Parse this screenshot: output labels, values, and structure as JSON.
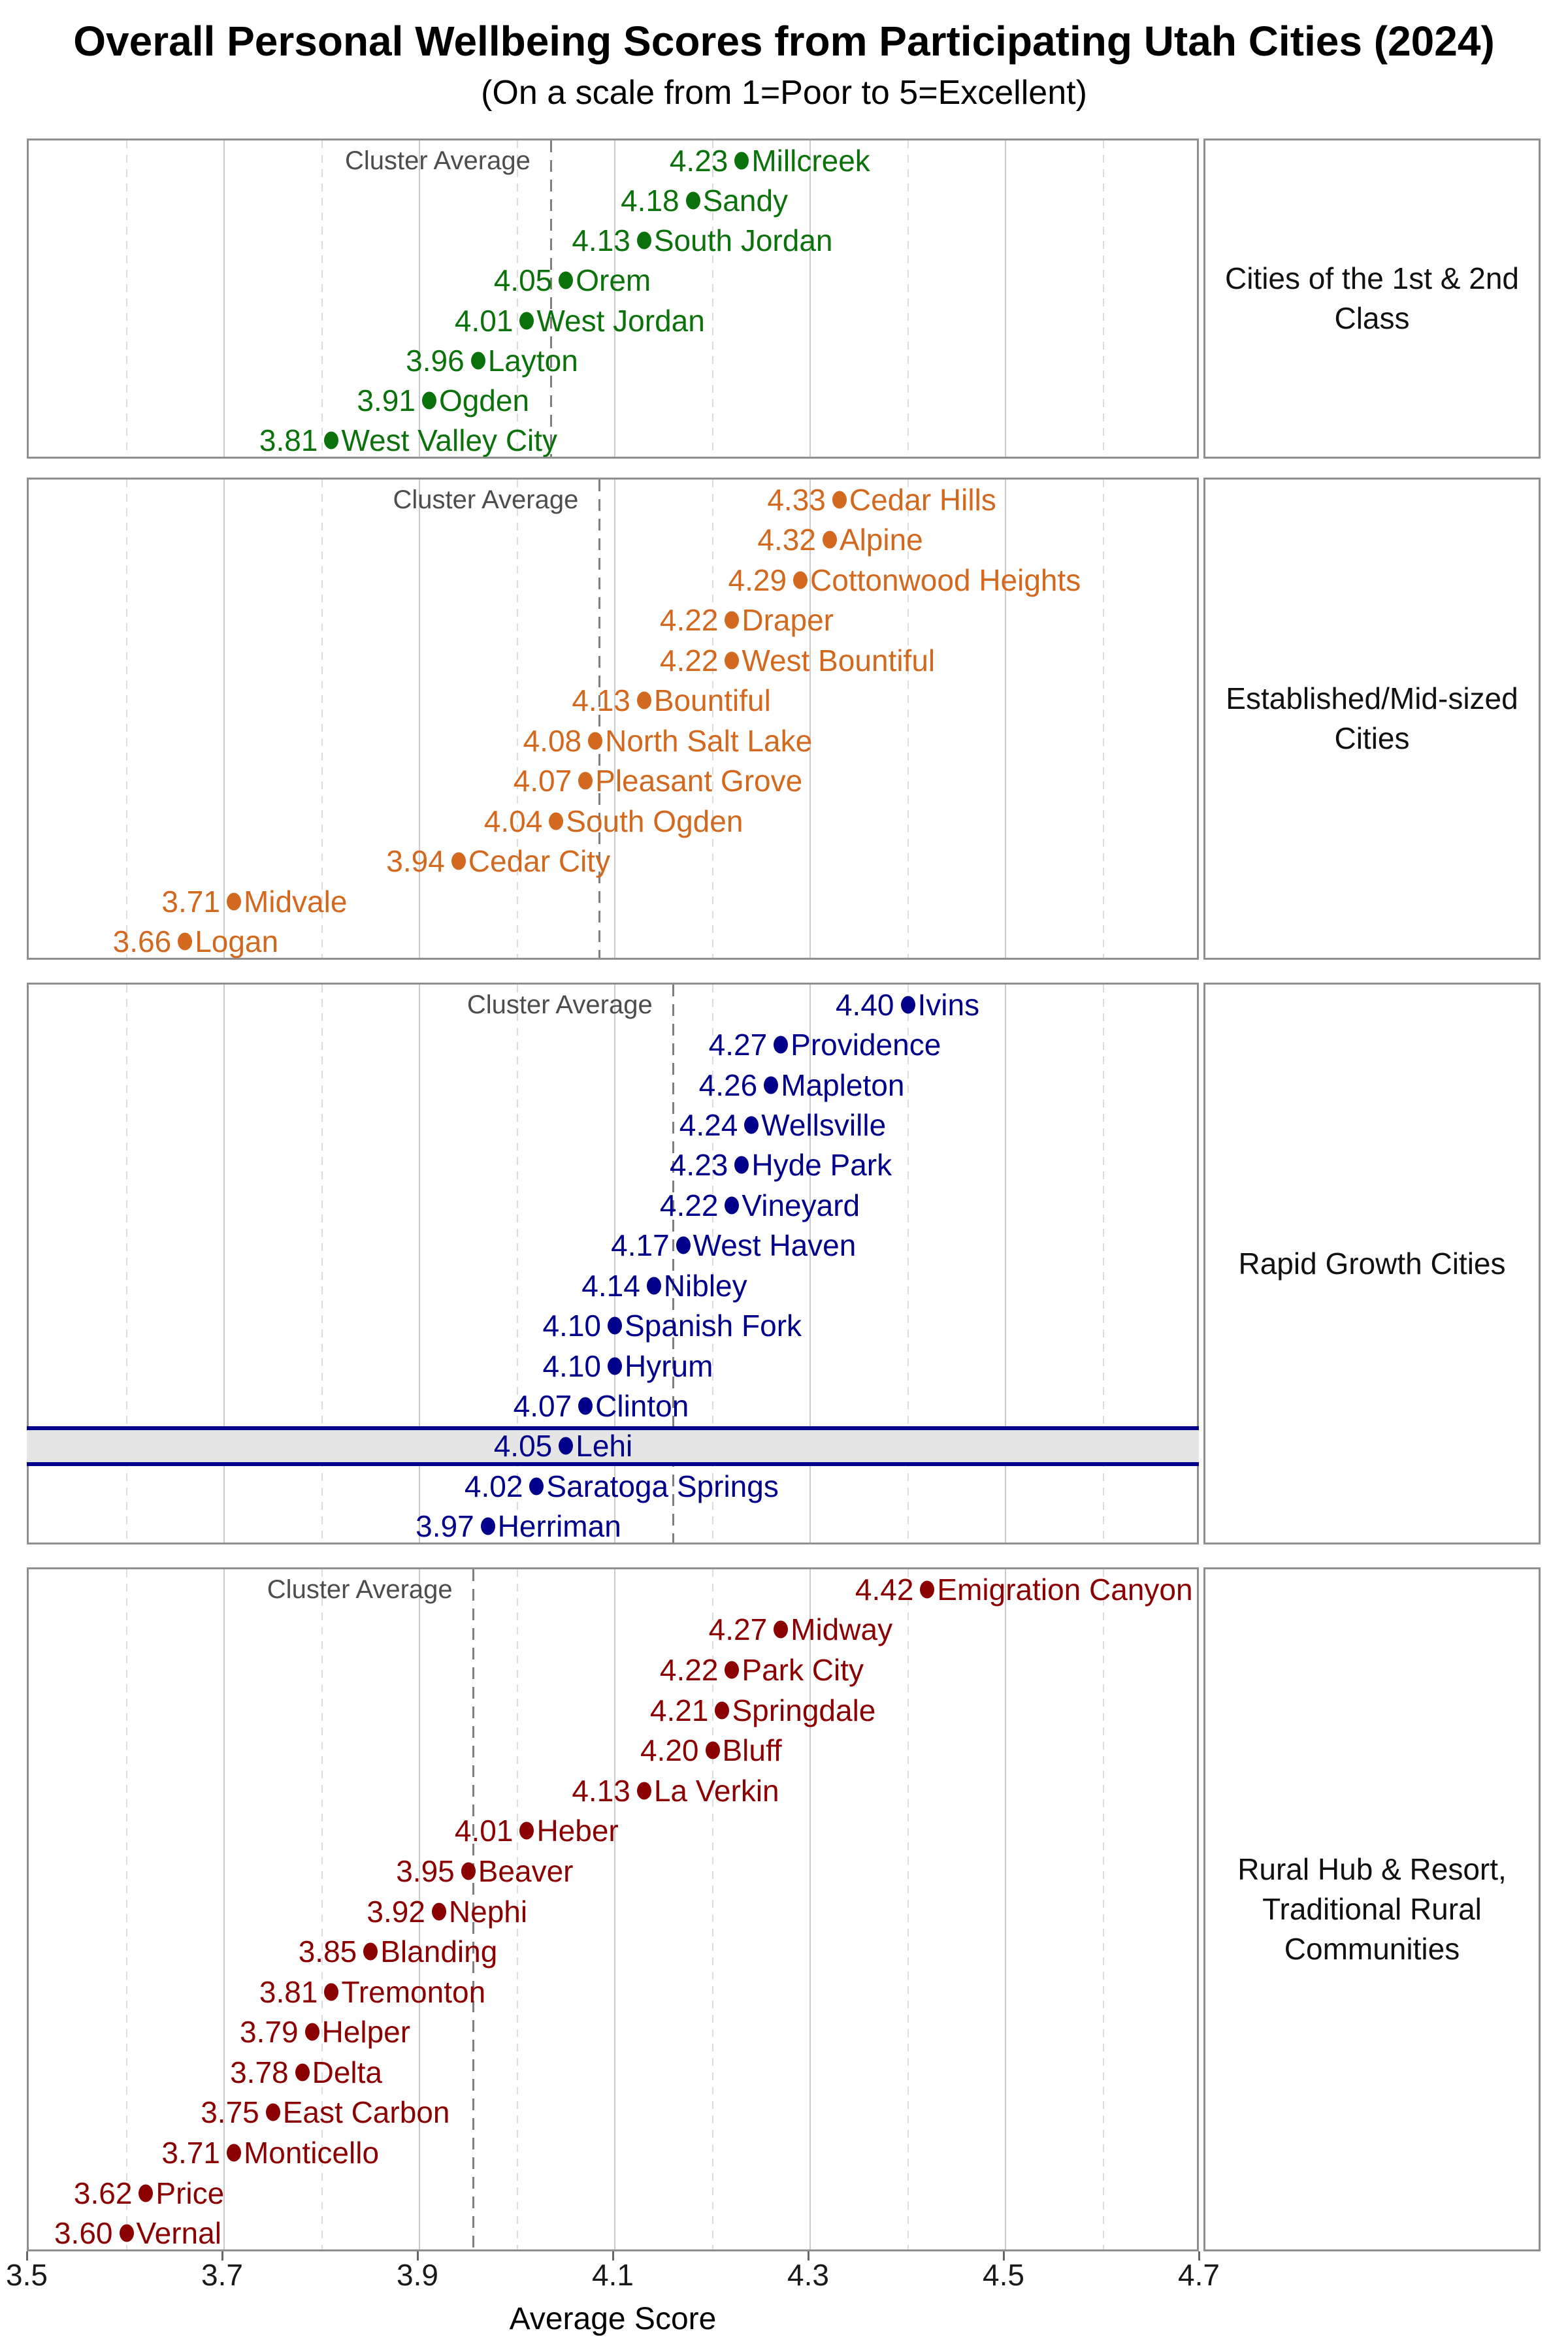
{
  "title": "Overall Personal Wellbeing Scores from Participating Utah Cities (2024)",
  "subtitle": "(On a scale from 1=Poor to 5=Excellent)",
  "cluster_average_label": "Cluster Average",
  "chart_data": {
    "type": "scatter",
    "title": "Overall Personal Wellbeing Scores from Participating Utah Cities (2024)",
    "subtitle": "(On a scale from 1=Poor to 5=Excellent)",
    "xlabel": "Average Score",
    "xlim": [
      3.5,
      4.7
    ],
    "xticks": [
      3.5,
      3.7,
      3.9,
      4.1,
      4.3,
      4.5,
      4.7
    ],
    "xticks_minor": [
      3.6,
      3.8,
      4.0,
      4.2,
      4.4,
      4.6
    ],
    "grid": "on",
    "legend_position": "right-facet-strips",
    "value_format": "2-decimals",
    "highlight": {
      "panel_index": 2,
      "city": "Lehi",
      "band_fill": "#e5e5e5",
      "band_border": "#00008b"
    },
    "panels": [
      {
        "label": "Cities of the 1st & 2nd Class",
        "color": "#0b720b",
        "cluster_average": 4.04,
        "cities": [
          {
            "name": "Millcreek",
            "score": 4.23
          },
          {
            "name": "Sandy",
            "score": 4.18
          },
          {
            "name": "South Jordan",
            "score": 4.13
          },
          {
            "name": "Orem",
            "score": 4.05
          },
          {
            "name": "West Jordan",
            "score": 4.01
          },
          {
            "name": "Layton",
            "score": 3.96
          },
          {
            "name": "Ogden",
            "score": 3.91
          },
          {
            "name": "West Valley City",
            "score": 3.81
          }
        ]
      },
      {
        "label": "Established/Mid-sized Cities",
        "color": "#d2691e",
        "cluster_average": 4.08,
        "cities": [
          {
            "name": "Cedar Hills",
            "score": 4.33
          },
          {
            "name": "Alpine",
            "score": 4.32
          },
          {
            "name": "Cottonwood Heights",
            "score": 4.29
          },
          {
            "name": "Draper",
            "score": 4.22
          },
          {
            "name": "West Bountiful",
            "score": 4.22
          },
          {
            "name": "Bountiful",
            "score": 4.13
          },
          {
            "name": "North Salt Lake",
            "score": 4.08
          },
          {
            "name": "Pleasant Grove",
            "score": 4.07
          },
          {
            "name": "South Ogden",
            "score": 4.04
          },
          {
            "name": "Cedar City",
            "score": 3.94
          },
          {
            "name": "Midvale",
            "score": 3.71
          },
          {
            "name": "Logan",
            "score": 3.66
          }
        ]
      },
      {
        "label": "Rapid Growth Cities",
        "color": "#00008b",
        "cluster_average": 4.16,
        "cities": [
          {
            "name": "Ivins",
            "score": 4.4
          },
          {
            "name": "Providence",
            "score": 4.27
          },
          {
            "name": "Mapleton",
            "score": 4.26
          },
          {
            "name": "Wellsville",
            "score": 4.24
          },
          {
            "name": "Hyde Park",
            "score": 4.23
          },
          {
            "name": "Vineyard",
            "score": 4.22
          },
          {
            "name": "West Haven",
            "score": 4.17
          },
          {
            "name": "Nibley",
            "score": 4.14
          },
          {
            "name": "Spanish Fork",
            "score": 4.1
          },
          {
            "name": "Hyrum",
            "score": 4.1
          },
          {
            "name": "Clinton",
            "score": 4.07
          },
          {
            "name": "Lehi",
            "score": 4.05
          },
          {
            "name": "Saratoga Springs",
            "score": 4.02
          },
          {
            "name": "Herriman",
            "score": 3.97
          }
        ]
      },
      {
        "label": "Rural Hub & Resort, Traditional Rural Communities",
        "color": "#8b0000",
        "cluster_average": 3.96,
        "cities": [
          {
            "name": "Emigration Canyon",
            "score": 4.42
          },
          {
            "name": "Midway",
            "score": 4.27
          },
          {
            "name": "Park City",
            "score": 4.22
          },
          {
            "name": "Springdale",
            "score": 4.21
          },
          {
            "name": "Bluff",
            "score": 4.2
          },
          {
            "name": "La Verkin",
            "score": 4.13
          },
          {
            "name": "Heber",
            "score": 4.01
          },
          {
            "name": "Beaver",
            "score": 3.95
          },
          {
            "name": "Nephi",
            "score": 3.92
          },
          {
            "name": "Blanding",
            "score": 3.85
          },
          {
            "name": "Tremonton",
            "score": 3.81
          },
          {
            "name": "Helper",
            "score": 3.79
          },
          {
            "name": "Delta",
            "score": 3.78
          },
          {
            "name": "East Carbon",
            "score": 3.75
          },
          {
            "name": "Monticello",
            "score": 3.71
          },
          {
            "name": "Price",
            "score": 3.62
          },
          {
            "name": "Vernal",
            "score": 3.6
          }
        ]
      }
    ]
  }
}
